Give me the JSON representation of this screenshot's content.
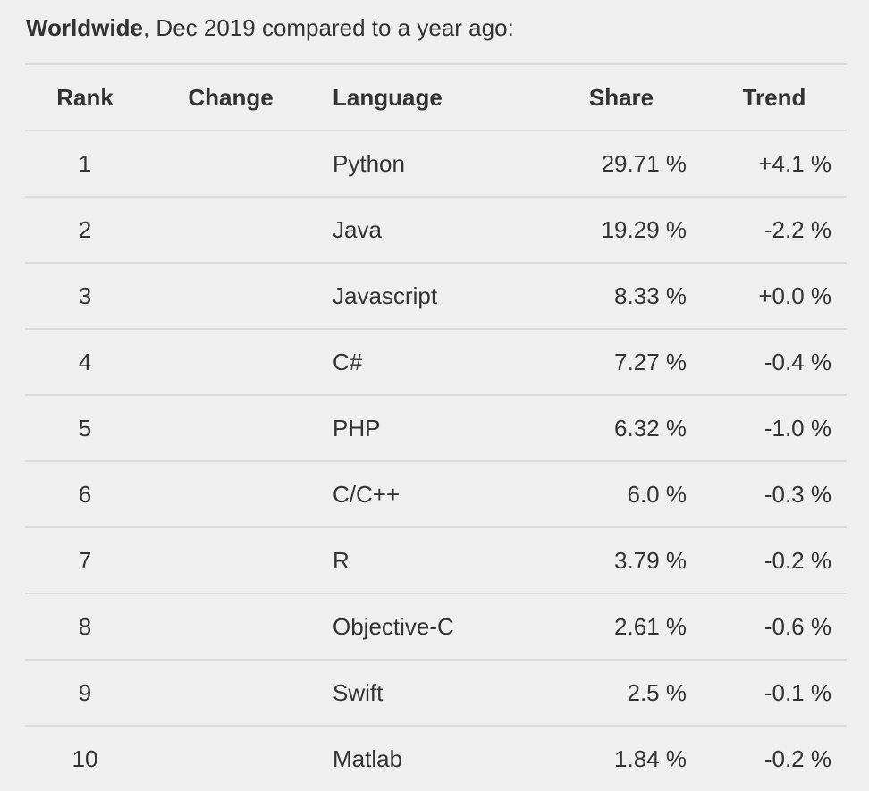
{
  "heading": {
    "bold": "Worldwide",
    "rest": ", Dec 2019 compared to a year ago:"
  },
  "table": {
    "headers": {
      "rank": "Rank",
      "change": "Change",
      "language": "Language",
      "share": "Share",
      "trend": "Trend"
    },
    "rows": [
      {
        "rank": "1",
        "change": "",
        "language": "Python",
        "share": "29.71 %",
        "trend": "+4.1 %"
      },
      {
        "rank": "2",
        "change": "",
        "language": "Java",
        "share": "19.29 %",
        "trend": "-2.2 %"
      },
      {
        "rank": "3",
        "change": "",
        "language": "Javascript",
        "share": "8.33 %",
        "trend": "+0.0 %"
      },
      {
        "rank": "4",
        "change": "",
        "language": "C#",
        "share": "7.27 %",
        "trend": "-0.4 %"
      },
      {
        "rank": "5",
        "change": "",
        "language": "PHP",
        "share": "6.32 %",
        "trend": "-1.0 %"
      },
      {
        "rank": "6",
        "change": "",
        "language": "C/C++",
        "share": "6.0 %",
        "trend": "-0.3 %"
      },
      {
        "rank": "7",
        "change": "",
        "language": "R",
        "share": "3.79 %",
        "trend": "-0.2 %"
      },
      {
        "rank": "8",
        "change": "",
        "language": "Objective-C",
        "share": "2.61 %",
        "trend": "-0.6 %"
      },
      {
        "rank": "9",
        "change": "",
        "language": "Swift",
        "share": "2.5 %",
        "trend": "-0.1 %"
      },
      {
        "rank": "10",
        "change": "",
        "language": "Matlab",
        "share": "1.84 %",
        "trend": "-0.2 %"
      }
    ]
  }
}
